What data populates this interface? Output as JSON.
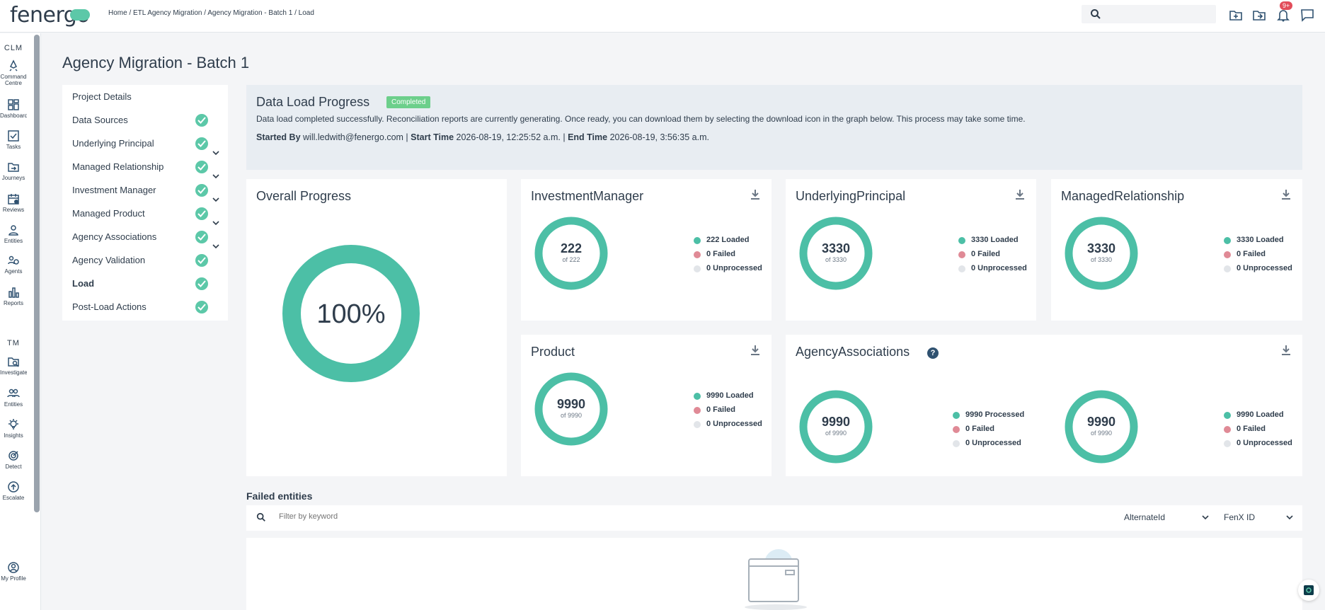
{
  "app": {
    "logo_text": "fenergo"
  },
  "breadcrumb": "Home / ETL Agency Migration / Agency Migration - Batch 1 / Load",
  "topbar": {
    "notification_count": "9+",
    "icons": [
      "search-icon",
      "folder-add-icon",
      "folder-arrow-icon",
      "bell-icon",
      "chat-icon"
    ]
  },
  "sidebar": {
    "sections": [
      {
        "label": "CLM"
      },
      {
        "label": "TM"
      }
    ],
    "clm_items": [
      {
        "label": "Command Centre",
        "icon": "rocket-icon"
      },
      {
        "label": "Dashboards",
        "icon": "dashboard-icon"
      },
      {
        "label": "Tasks",
        "icon": "tasks-icon"
      },
      {
        "label": "Journeys",
        "icon": "journeys-icon"
      },
      {
        "label": "Reviews",
        "icon": "calendar-icon"
      },
      {
        "label": "Entities",
        "icon": "person-icon"
      },
      {
        "label": "Agents",
        "icon": "agents-icon"
      },
      {
        "label": "Reports",
        "icon": "bar-chart-icon"
      }
    ],
    "tm_items": [
      {
        "label": "Investigate",
        "icon": "investigate-icon"
      },
      {
        "label": "Entities",
        "icon": "people-icon"
      },
      {
        "label": "Insights",
        "icon": "lightbulb-icon"
      },
      {
        "label": "Detect",
        "icon": "target-icon"
      },
      {
        "label": "Escalate",
        "icon": "escalate-icon"
      }
    ],
    "profile_label": "My Profile"
  },
  "page_title": "Agency Migration - Batch 1",
  "steps": [
    {
      "label": "Project Details",
      "check": false,
      "chevron": false
    },
    {
      "label": "Data Sources",
      "check": true,
      "chevron": false
    },
    {
      "label": "Underlying Principal",
      "check": true,
      "chevron": true
    },
    {
      "label": "Managed Relationship",
      "check": true,
      "chevron": true
    },
    {
      "label": "Investment Manager",
      "check": true,
      "chevron": true
    },
    {
      "label": "Managed Product",
      "check": true,
      "chevron": true
    },
    {
      "label": "Agency Associations",
      "check": true,
      "chevron": true
    },
    {
      "label": "Agency Validation",
      "check": true,
      "chevron": false
    },
    {
      "label": "Load",
      "check": true,
      "chevron": false
    },
    {
      "label": "Post-Load Actions",
      "check": true,
      "chevron": false
    }
  ],
  "banner": {
    "title": "Data Load Progress",
    "status": "Completed",
    "message": "Data load completed successfully. Reconciliation reports are currently generating. Once ready, you can download them by selecting the download icon in the graph below. This process may take some time.",
    "started_by_label": "Started By",
    "started_by": "will.ledwith@fenergo.com |",
    "start_time_label": "Start Time",
    "start_time": "2026-08-19, 12:25:52 a.m. |",
    "end_time_label": "End Time",
    "end_time": "2026-08-19, 3:56:35 a.m."
  },
  "overall": {
    "title": "Overall Progress",
    "percent_label": "100%",
    "percent": 1.0
  },
  "colors": {
    "green": "#4cbfa6",
    "red": "#e08a96",
    "grey": "#e2e5e9",
    "badge": "#6ccf8b"
  },
  "cards": {
    "investment": {
      "title": "InvestmentManager",
      "value": "222",
      "of": "of 222",
      "legend": [
        "222 Loaded",
        "0 Failed",
        "0 Unprocessed"
      ]
    },
    "underlying": {
      "title": "UnderlyingPrincipal",
      "value": "3330",
      "of": "of 3330",
      "legend": [
        "3330 Loaded",
        "0 Failed",
        "0 Unprocessed"
      ]
    },
    "managed": {
      "title": "ManagedRelationship",
      "value": "3330",
      "of": "of 3330",
      "legend": [
        "3330 Loaded",
        "0 Failed",
        "0 Unprocessed"
      ]
    },
    "product": {
      "title": "Product",
      "value": "9990",
      "of": "of 9990",
      "legend": [
        "9990 Loaded",
        "0 Failed",
        "0 Unprocessed"
      ]
    },
    "agency": {
      "title": "AgencyAssociations",
      "ring1": {
        "value": "9990",
        "of": "of 9990",
        "legend": [
          "9990 Processed",
          "0 Failed",
          "0 Unprocessed"
        ]
      },
      "ring2": {
        "value": "9990",
        "of": "of 9990",
        "legend": [
          "9990 Loaded",
          "0 Failed",
          "0 Unprocessed"
        ]
      }
    }
  },
  "failed": {
    "title": "Failed entities",
    "filter_placeholder": "Filter by keyword",
    "select1": "AlternateId",
    "select2": "FenX ID"
  }
}
